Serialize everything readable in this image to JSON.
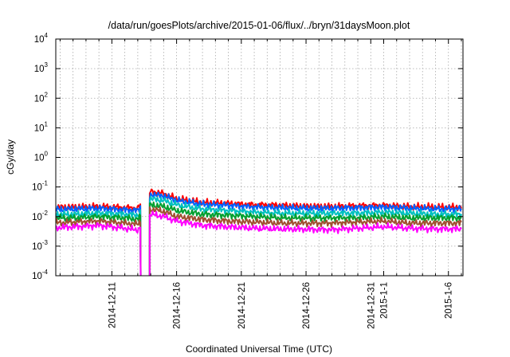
{
  "chart_data": {
    "type": "line",
    "title": "/data/run/goesPlots/archive/2015-01-06/flux/../bryn/31daysMoon.plot",
    "xlabel": "Coordinated Universal Time (UTC)",
    "ylabel": "cGy/day",
    "yscale": "log",
    "ylim": [
      0.0001,
      10000
    ],
    "xlim": [
      "2014-12-06T16:00",
      "2015-01-07T03:00"
    ],
    "grid": true,
    "legend": "none",
    "y_ticks": [
      {
        "value": 0.0001,
        "mantissa": "10",
        "exp": "-4"
      },
      {
        "value": 0.001,
        "mantissa": "10",
        "exp": "-3"
      },
      {
        "value": 0.01,
        "mantissa": "10",
        "exp": "-2"
      },
      {
        "value": 0.1,
        "mantissa": "10",
        "exp": "-1"
      },
      {
        "value": 1,
        "mantissa": "10",
        "exp": "0"
      },
      {
        "value": 10,
        "mantissa": "10",
        "exp": "1"
      },
      {
        "value": 100,
        "mantissa": "10",
        "exp": "2"
      },
      {
        "value": 1000,
        "mantissa": "10",
        "exp": "3"
      },
      {
        "value": 10000,
        "mantissa": "10",
        "exp": "4"
      }
    ],
    "x_ticks": [
      {
        "value": "2014-12-11",
        "label": "2014-12-11"
      },
      {
        "value": "2014-12-16",
        "label": "2014-12-16"
      },
      {
        "value": "2014-12-21",
        "label": "2014-12-21"
      },
      {
        "value": "2014-12-26",
        "label": "2014-12-26"
      },
      {
        "value": "2014-12-31",
        "label": "2014-12-31"
      },
      {
        "value": "2015-01-01",
        "label": "2015-1-1"
      },
      {
        "value": "2015-01-06",
        "label": "2015-1-6"
      }
    ],
    "x_minor_grid": [
      "2014-12-07",
      "2014-12-08",
      "2014-12-09",
      "2014-12-10",
      "2014-12-12",
      "2014-12-13",
      "2014-12-14",
      "2014-12-15",
      "2014-12-17",
      "2014-12-18",
      "2014-12-19",
      "2014-12-20",
      "2014-12-22",
      "2014-12-23",
      "2014-12-24",
      "2014-12-25",
      "2014-12-27",
      "2014-12-28",
      "2014-12-29",
      "2014-12-30",
      "2015-01-02",
      "2015-01-03",
      "2015-01-04",
      "2015-01-05",
      "2015-01-07"
    ],
    "dates": [
      "2014-12-06",
      "2014-12-08",
      "2014-12-10",
      "2014-12-12",
      "2014-12-13",
      "2014-12-14",
      "2014-12-15",
      "2014-12-16",
      "2014-12-18",
      "2014-12-20",
      "2014-12-22",
      "2014-12-24",
      "2014-12-26",
      "2014-12-28",
      "2014-12-30",
      "2015-01-01",
      "2015-01-03",
      "2015-01-05",
      "2015-01-07"
    ],
    "gap": {
      "start": "2014-12-13T06:00",
      "end": "2014-12-13T22:00"
    },
    "series": [
      {
        "color": "#ff0000",
        "values": [
          0.02,
          0.021,
          0.022,
          0.02,
          0.019,
          0.07,
          0.06,
          0.04,
          0.03,
          0.028,
          0.025,
          0.024,
          0.022,
          0.022,
          0.023,
          0.024,
          0.022,
          0.021,
          0.021
        ]
      },
      {
        "color": "#0060ff",
        "values": [
          0.017,
          0.018,
          0.019,
          0.017,
          0.016,
          0.055,
          0.05,
          0.035,
          0.026,
          0.024,
          0.021,
          0.02,
          0.019,
          0.019,
          0.02,
          0.021,
          0.019,
          0.018,
          0.018
        ]
      },
      {
        "color": "#00c0c0",
        "values": [
          0.012,
          0.012,
          0.013,
          0.012,
          0.011,
          0.04,
          0.035,
          0.025,
          0.018,
          0.016,
          0.014,
          0.013,
          0.013,
          0.013,
          0.013,
          0.014,
          0.013,
          0.012,
          0.012
        ]
      },
      {
        "color": "#00a030",
        "values": [
          0.009,
          0.009,
          0.01,
          0.009,
          0.008,
          0.025,
          0.022,
          0.016,
          0.012,
          0.011,
          0.01,
          0.009,
          0.009,
          0.009,
          0.009,
          0.01,
          0.009,
          0.009,
          0.009
        ]
      },
      {
        "color": "#a05030",
        "values": [
          0.006,
          0.0065,
          0.007,
          0.006,
          0.0055,
          0.018,
          0.015,
          0.01,
          0.008,
          0.007,
          0.0065,
          0.006,
          0.006,
          0.006,
          0.0065,
          0.007,
          0.006,
          0.006,
          0.006
        ]
      },
      {
        "color": "#ff00ff",
        "values": [
          0.004,
          0.0045,
          0.005,
          0.004,
          0.0035,
          0.012,
          0.01,
          0.007,
          0.005,
          0.0045,
          0.004,
          0.0038,
          0.0037,
          0.0036,
          0.004,
          0.0045,
          0.004,
          0.0038,
          0.0038
        ]
      }
    ]
  }
}
